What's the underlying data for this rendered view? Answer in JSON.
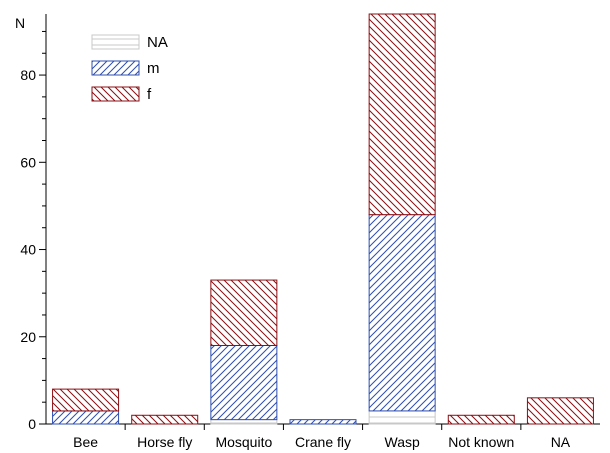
{
  "chart_data": {
    "type": "bar",
    "stacked": true,
    "categories": [
      "Bee",
      "Horse fly",
      "Mosquito",
      "Crane fly",
      "Wasp",
      "Not known",
      "NA"
    ],
    "series": [
      {
        "name": "NA",
        "values": [
          0,
          0,
          1,
          0,
          3,
          0,
          0
        ],
        "color": "#c8c8c8",
        "hatch": "horizontal"
      },
      {
        "name": "m",
        "values": [
          3,
          0,
          17,
          1,
          45,
          0,
          0
        ],
        "color": "#2f4fb0",
        "hatch": "forward-diagonal"
      },
      {
        "name": "f",
        "values": [
          5,
          2,
          15,
          0,
          46,
          2,
          6
        ],
        "color": "#8b0f14",
        "hatch": "back-diagonal"
      }
    ],
    "ylabel": "N",
    "ylim": [
      0,
      94
    ],
    "yticks": [
      "0",
      "20",
      "40",
      "60",
      "80"
    ],
    "grid": false,
    "legend_position": "top-left"
  }
}
